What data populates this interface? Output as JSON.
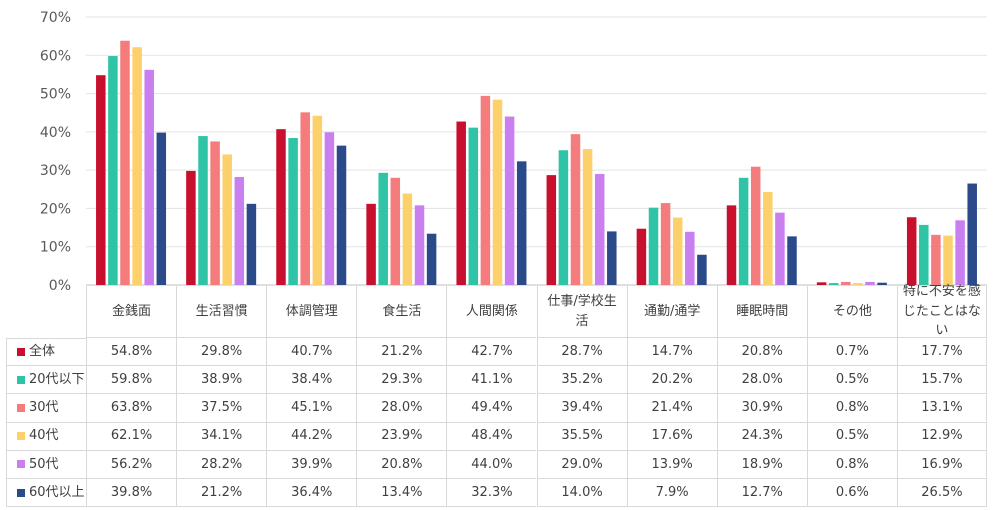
{
  "chart_data": {
    "type": "bar",
    "categories": [
      "金銭面",
      "生活習慣",
      "体調管理",
      "食生活",
      "人間関係",
      "仕事/学校生活",
      "通勤/通学",
      "睡眠時間",
      "その他",
      "特に不安を感じたことはない"
    ],
    "category_lines": [
      [
        "金銭面"
      ],
      [
        "生活習慣"
      ],
      [
        "体調管理"
      ],
      [
        "食生活"
      ],
      [
        "人間関係"
      ],
      [
        "仕事/学校生",
        "活"
      ],
      [
        "通勤/通学"
      ],
      [
        "睡眠時間"
      ],
      [
        "その他"
      ],
      [
        "特に不安を感",
        "じたことはない"
      ]
    ],
    "series": [
      {
        "name": "全体",
        "color": "#c8102e",
        "values": [
          54.8,
          29.8,
          40.7,
          21.2,
          42.7,
          28.7,
          14.7,
          20.8,
          0.7,
          17.7
        ]
      },
      {
        "name": "20代以下",
        "color": "#2ec4a5",
        "values": [
          59.8,
          38.9,
          38.4,
          29.3,
          41.1,
          35.2,
          20.2,
          28.0,
          0.5,
          15.7
        ]
      },
      {
        "name": "30代",
        "color": "#f47c7c",
        "values": [
          63.8,
          37.5,
          45.1,
          28.0,
          49.4,
          39.4,
          21.4,
          30.9,
          0.8,
          13.1
        ]
      },
      {
        "name": "40代",
        "color": "#fcd06b",
        "values": [
          62.1,
          34.1,
          44.2,
          23.9,
          48.4,
          35.5,
          17.6,
          24.3,
          0.5,
          12.9
        ]
      },
      {
        "name": "50代",
        "color": "#c97ff0",
        "values": [
          56.2,
          28.2,
          39.9,
          20.8,
          44.0,
          29.0,
          13.9,
          18.9,
          0.8,
          16.9
        ]
      },
      {
        "name": "60代以上",
        "color": "#2a4a8a",
        "values": [
          39.8,
          21.2,
          36.4,
          13.4,
          32.3,
          14.0,
          7.9,
          12.7,
          0.6,
          26.5
        ]
      }
    ],
    "value_labels": [
      [
        "54.8%",
        "29.8%",
        "40.7%",
        "21.2%",
        "42.7%",
        "28.7%",
        "14.7%",
        "20.8%",
        "0.7%",
        "17.7%"
      ],
      [
        "59.8%",
        "38.9%",
        "38.4%",
        "29.3%",
        "41.1%",
        "35.2%",
        "20.2%",
        "28.0%",
        "0.5%",
        "15.7%"
      ],
      [
        "63.8%",
        "37.5%",
        "45.1%",
        "28.0%",
        "49.4%",
        "39.4%",
        "21.4%",
        "30.9%",
        "0.8%",
        "13.1%"
      ],
      [
        "62.1%",
        "34.1%",
        "44.2%",
        "23.9%",
        "48.4%",
        "35.5%",
        "17.6%",
        "24.3%",
        "0.5%",
        "12.9%"
      ],
      [
        "56.2%",
        "28.2%",
        "39.9%",
        "20.8%",
        "44.0%",
        "29.0%",
        "13.9%",
        "18.9%",
        "0.8%",
        "16.9%"
      ],
      [
        "39.8%",
        "21.2%",
        "36.4%",
        "13.4%",
        "32.3%",
        "14.0%",
        "7.9%",
        "12.7%",
        "0.6%",
        "26.5%"
      ]
    ],
    "yticks": [
      "0%",
      "10%",
      "20%",
      "30%",
      "40%",
      "50%",
      "60%",
      "70%"
    ],
    "ylim": [
      0,
      70
    ],
    "grid": true,
    "legend_placement": "data-table-left",
    "title": "",
    "xlabel": "",
    "ylabel": ""
  }
}
